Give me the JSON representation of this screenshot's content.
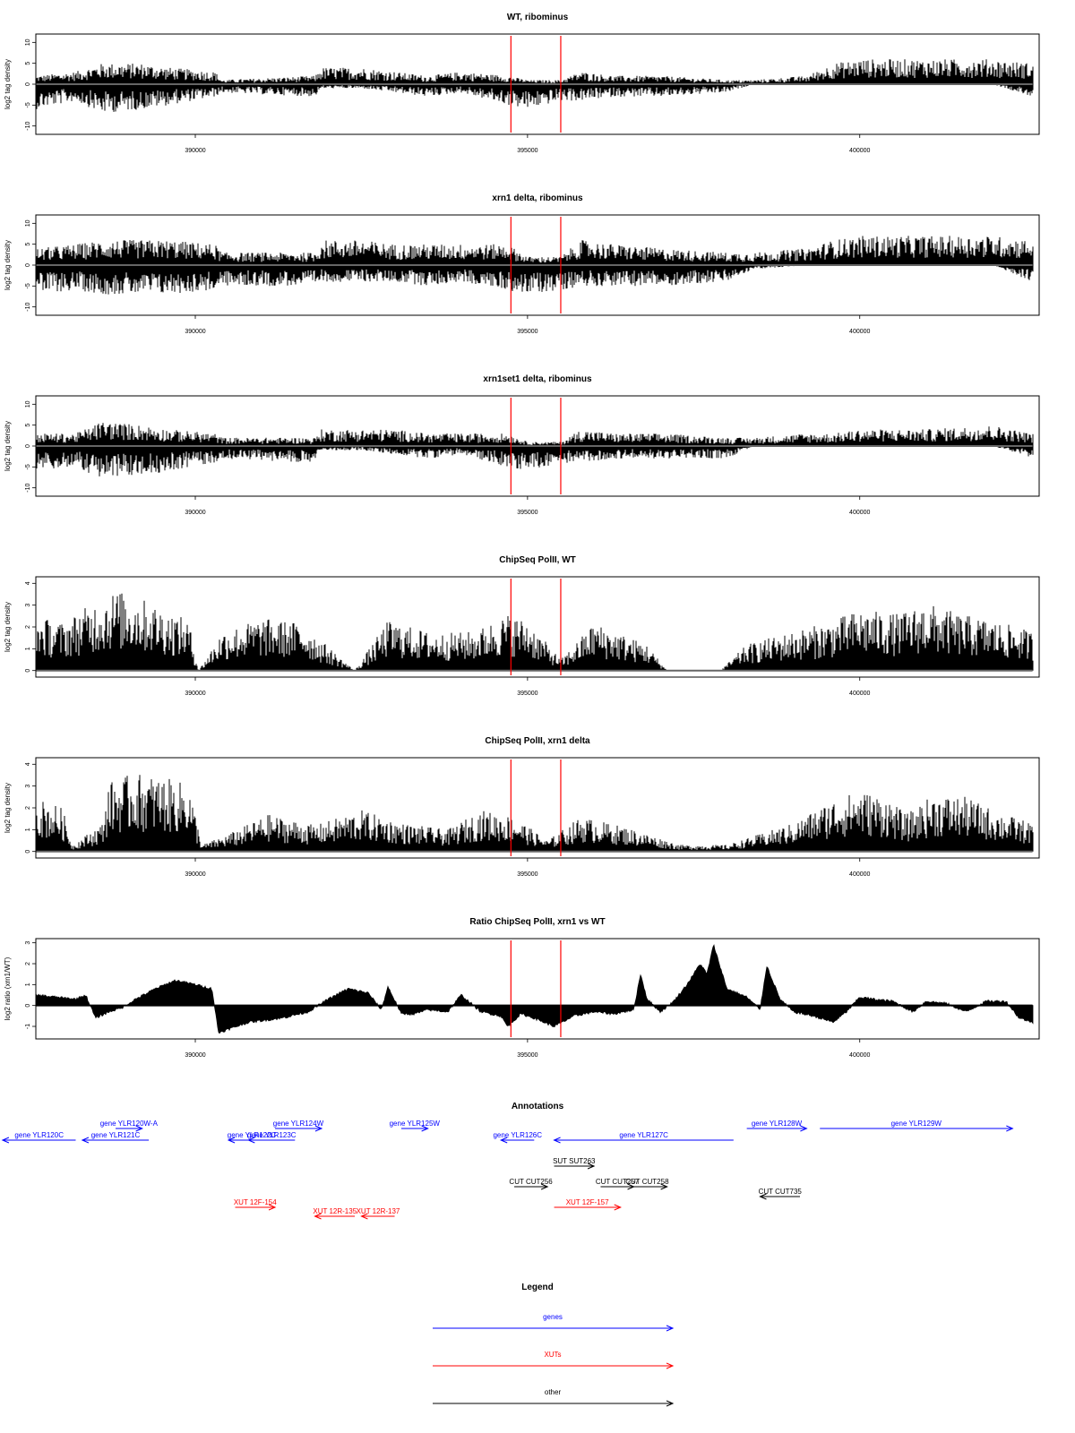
{
  "colors": {
    "bars": "#000000",
    "marker": "#ff0000",
    "gene": "#0000ff",
    "xut": "#ff0000",
    "other": "#000000",
    "frame": "#000000"
  },
  "chart_data": [
    {
      "type": "bar",
      "title": "WT, ribominus",
      "ylabel": "log2 tag density",
      "xlim": [
        387600,
        402700
      ],
      "ylim": [
        -12,
        12
      ],
      "yticks": [
        10,
        5,
        0,
        -5,
        -10
      ],
      "xticks": [
        390000,
        395000,
        400000
      ],
      "xtick_labels": [
        "390000",
        "395000",
        "400000"
      ],
      "markers": [
        394750,
        395500
      ],
      "envelope": {
        "x": [
          387600,
          388200,
          388600,
          389200,
          389600,
          390300,
          390400,
          391800,
          391900,
          392500,
          393000,
          393500,
          394000,
          394700,
          395000,
          395500,
          395800,
          396300,
          397000,
          398000,
          398400,
          399200,
          399600,
          400000,
          401000,
          402000,
          402600
        ],
        "pos": [
          2,
          3,
          5,
          5,
          4,
          3,
          1,
          2,
          4,
          4,
          3,
          2,
          3,
          2,
          1,
          1,
          3,
          2,
          2,
          1,
          1,
          2,
          5,
          6,
          6,
          6,
          5
        ],
        "neg": [
          -6,
          -4,
          -7,
          -6,
          -5,
          -3,
          -2,
          -3,
          -1,
          -1,
          -2,
          -3,
          -2,
          -5,
          -6,
          -4,
          -4,
          -3,
          -3,
          -2,
          0,
          0,
          0,
          0,
          0,
          0,
          -3
        ]
      }
    },
    {
      "type": "bar",
      "title": "xrn1 delta, ribominus",
      "ylabel": "log2 tag density",
      "xlim": [
        387600,
        402700
      ],
      "ylim": [
        -12,
        12
      ],
      "yticks": [
        10,
        5,
        0,
        -5,
        -10
      ],
      "xticks": [
        390000,
        395000,
        400000
      ],
      "xtick_labels": [
        "390000",
        "395000",
        "400000"
      ],
      "markers": [
        394750,
        395500
      ],
      "envelope": {
        "x": [
          387600,
          388200,
          388600,
          389200,
          389600,
          390300,
          390400,
          391800,
          391900,
          392500,
          393000,
          393500,
          394000,
          394700,
          395000,
          395500,
          395800,
          396300,
          397000,
          398000,
          398400,
          399200,
          399600,
          400000,
          401000,
          402000,
          402600
        ],
        "pos": [
          4,
          5,
          6,
          6,
          6,
          5,
          3,
          3,
          6,
          6,
          5,
          5,
          5,
          5,
          2,
          2,
          6,
          5,
          4,
          3,
          3,
          4,
          6,
          7,
          7,
          7,
          6
        ],
        "neg": [
          -7,
          -6,
          -7,
          -7,
          -7,
          -6,
          -5,
          -5,
          -4,
          -4,
          -4,
          -5,
          -4,
          -6,
          -7,
          -6,
          -5,
          -5,
          -5,
          -4,
          -1,
          0,
          0,
          0,
          0,
          0,
          -4
        ]
      }
    },
    {
      "type": "bar",
      "title": "xrn1set1 delta, ribominus",
      "ylabel": "log2 tag density",
      "xlim": [
        387600,
        402700
      ],
      "ylim": [
        -12,
        12
      ],
      "yticks": [
        10,
        5,
        0,
        -5,
        -10
      ],
      "xticks": [
        390000,
        395000,
        400000
      ],
      "xtick_labels": [
        "390000",
        "395000",
        "400000"
      ],
      "markers": [
        394750,
        395500
      ],
      "envelope": {
        "x": [
          387600,
          388200,
          388600,
          389200,
          389600,
          390300,
          390400,
          391800,
          391900,
          392500,
          393000,
          393500,
          394000,
          394700,
          395000,
          395500,
          395800,
          396300,
          397000,
          398000,
          398400,
          399200,
          399600,
          400000,
          401000,
          402000,
          402600
        ],
        "pos": [
          3,
          3,
          6,
          5,
          4,
          3,
          2,
          2,
          4,
          4,
          4,
          3,
          3,
          3,
          1,
          1,
          4,
          3,
          3,
          2,
          2,
          3,
          3,
          4,
          4,
          5,
          3
        ],
        "neg": [
          -6,
          -5,
          -8,
          -7,
          -6,
          -4,
          -3,
          -4,
          -1,
          -1,
          -2,
          -3,
          -2,
          -5,
          -6,
          -4,
          -4,
          -3,
          -3,
          -3,
          0,
          0,
          0,
          0,
          0,
          0,
          -3
        ]
      }
    },
    {
      "type": "bar",
      "title": "ChipSeq PolII, WT",
      "ylabel": "log2 tag density",
      "xlim": [
        387600,
        402700
      ],
      "ylim": [
        -0.3,
        4.3
      ],
      "yticks": [
        0,
        1,
        2,
        3,
        4
      ],
      "xticks": [
        390000,
        395000,
        400000
      ],
      "xtick_labels": [
        "390000",
        "395000",
        "400000"
      ],
      "markers": [
        394750,
        395500
      ],
      "envelope": {
        "x": [
          387600,
          388000,
          388400,
          388800,
          389200,
          389600,
          389900,
          390050,
          390400,
          391000,
          391600,
          392400,
          392900,
          393600,
          394200,
          394700,
          395000,
          395500,
          396000,
          396800,
          397100,
          397900,
          398300,
          399000,
          399500,
          400000,
          400600,
          401000,
          401500,
          402000,
          402600
        ],
        "pos": [
          2.5,
          2.2,
          3.0,
          3.7,
          3.3,
          2.7,
          2.3,
          0,
          1.8,
          2.4,
          2.2,
          0,
          2.3,
          1.7,
          1.8,
          2.6,
          2.3,
          0.5,
          2.2,
          1.2,
          0,
          0,
          1.2,
          1.8,
          2.2,
          2.8,
          2.6,
          3.1,
          2.6,
          2.3,
          1.8
        ],
        "neg": []
      }
    },
    {
      "type": "bar",
      "title": "ChipSeq PolII, xrn1 delta",
      "ylabel": "log2 tag density",
      "xlim": [
        387600,
        402700
      ],
      "ylim": [
        -0.3,
        4.3
      ],
      "yticks": [
        0,
        1,
        2,
        3,
        4
      ],
      "xticks": [
        390000,
        395000,
        400000
      ],
      "xtick_labels": [
        "390000",
        "395000",
        "400000"
      ],
      "markers": [
        394750,
        395500
      ],
      "envelope": {
        "x": [
          387600,
          388000,
          388150,
          388600,
          388700,
          389100,
          389500,
          389900,
          390100,
          390500,
          391100,
          391800,
          392500,
          393100,
          393800,
          394300,
          394800,
          395300,
          395800,
          396500,
          397300,
          398000,
          398500,
          399000,
          399600,
          400000,
          400400,
          400700,
          401100,
          401600,
          402100,
          402600
        ],
        "pos": [
          2.5,
          2.0,
          0.3,
          1.3,
          3.2,
          3.6,
          3.4,
          3.1,
          0.3,
          0.8,
          1.7,
          1.2,
          1.9,
          1.3,
          1.0,
          1.9,
          1.6,
          0.5,
          1.6,
          1.1,
          0.3,
          0.3,
          0.8,
          1.3,
          2.4,
          2.8,
          2.5,
          1.7,
          2.6,
          2.5,
          1.8,
          1.3
        ],
        "neg": []
      }
    },
    {
      "type": "area",
      "title": "Ratio ChipSeq PolII, xrn1 vs WT",
      "ylabel": "log2 ratio (xrn1/WT)",
      "xlim": [
        387600,
        402700
      ],
      "ylim": [
        -1.6,
        3.2
      ],
      "yticks": [
        3,
        2,
        1,
        0,
        -1
      ],
      "xticks": [
        390000,
        395000,
        400000
      ],
      "xtick_labels": [
        "390000",
        "395000",
        "400000"
      ],
      "markers": [
        394750,
        395500
      ],
      "x": [
        387600,
        387900,
        388200,
        388350,
        388500,
        388700,
        388900,
        389100,
        389400,
        389700,
        390000,
        390250,
        390350,
        390800,
        391300,
        391700,
        392000,
        392300,
        392600,
        392800,
        392900,
        393100,
        393300,
        393500,
        393800,
        394000,
        394300,
        394600,
        394700,
        394900,
        395100,
        395400,
        395700,
        396000,
        396300,
        396600,
        396700,
        396800,
        397000,
        397200,
        397400,
        397600,
        397700,
        397800,
        398000,
        398300,
        398500,
        398600,
        398800,
        399000,
        399300,
        399600,
        399800,
        400000,
        400200,
        400500,
        400800,
        401000,
        401300,
        401600,
        401900,
        402200,
        402400,
        402600
      ],
      "y": [
        0.5,
        0.4,
        0.3,
        0.5,
        -0.6,
        -0.3,
        -0.1,
        0.3,
        0.8,
        1.2,
        1.0,
        0.8,
        -1.3,
        -0.8,
        -0.6,
        -0.3,
        0.3,
        0.8,
        0.6,
        -0.2,
        0.9,
        -0.4,
        -0.4,
        -0.2,
        -0.3,
        0.5,
        -0.3,
        -0.5,
        -1.0,
        -0.4,
        -0.6,
        -1.0,
        -0.5,
        -0.3,
        -0.4,
        -0.2,
        1.5,
        0.3,
        -0.3,
        0.2,
        1.0,
        2.0,
        1.5,
        2.9,
        0.8,
        0.4,
        -0.2,
        1.9,
        0.3,
        -0.3,
        -0.5,
        -0.8,
        -0.3,
        0.4,
        0.3,
        0.2,
        -0.3,
        0.2,
        0.1,
        -0.3,
        0.2,
        0.2,
        -0.6,
        -0.8
      ]
    }
  ],
  "annotations": {
    "title": "Annotations",
    "xlim": [
      387600,
      402700
    ],
    "items": [
      {
        "label": "gene YLR120C",
        "x1": 388200,
        "x2": 387100,
        "row": 1,
        "kind": "gene"
      },
      {
        "label": "gene YLR120W-A",
        "x1": 388800,
        "x2": 389200,
        "row": 0,
        "kind": "gene"
      },
      {
        "label": "gene YLR121C",
        "x1": 389300,
        "x2": 388300,
        "row": 1,
        "kind": "gene"
      },
      {
        "label": "gene YLR122C",
        "x1": 391200,
        "x2": 390500,
        "row": 1,
        "kind": "gene"
      },
      {
        "label": "gene YLR123C",
        "x1": 391500,
        "x2": 390800,
        "row": 1,
        "kind": "gene"
      },
      {
        "label": "gene YLR124W",
        "x1": 391200,
        "x2": 391900,
        "row": 0,
        "kind": "gene"
      },
      {
        "label": "gene YLR125W",
        "x1": 393100,
        "x2": 393500,
        "row": 0,
        "kind": "gene"
      },
      {
        "label": "gene YLR126C",
        "x1": 395100,
        "x2": 394600,
        "row": 1,
        "kind": "gene"
      },
      {
        "label": "gene YLR127C",
        "x1": 398100,
        "x2": 395400,
        "row": 1,
        "kind": "gene"
      },
      {
        "label": "gene YLR128W",
        "x1": 398300,
        "x2": 399200,
        "row": 0,
        "kind": "gene"
      },
      {
        "label": "gene YLR129W",
        "x1": 399400,
        "x2": 402300,
        "row": 0,
        "kind": "gene"
      },
      {
        "label": "SUT SUT263",
        "x1": 395400,
        "x2": 396000,
        "row": 3,
        "kind": "other"
      },
      {
        "label": "CUT CUT256",
        "x1": 394800,
        "x2": 395300,
        "row": 4,
        "kind": "other"
      },
      {
        "label": "CUT CUT257",
        "x1": 396100,
        "x2": 396600,
        "row": 4,
        "kind": "other"
      },
      {
        "label": "CUT CUT258",
        "x1": 396500,
        "x2": 397100,
        "row": 4,
        "kind": "other"
      },
      {
        "label": "CUT CUT735",
        "x1": 399100,
        "x2": 398500,
        "row": 5,
        "kind": "other"
      },
      {
        "label": "XUT 12F-154",
        "x1": 390600,
        "x2": 391200,
        "row": 6,
        "kind": "xut"
      },
      {
        "label": "XUT 12R-135",
        "x1": 392400,
        "x2": 391800,
        "row": 7,
        "kind": "xut"
      },
      {
        "label": "XUT 12R-137",
        "x1": 393000,
        "x2": 392500,
        "row": 7,
        "kind": "xut"
      },
      {
        "label": "XUT 12F-157",
        "x1": 395400,
        "x2": 396400,
        "row": 6,
        "kind": "xut"
      }
    ]
  },
  "legend": {
    "title": "Legend",
    "items": [
      {
        "label": "genes",
        "kind": "gene"
      },
      {
        "label": "XUTs",
        "kind": "xut"
      },
      {
        "label": "other",
        "kind": "other"
      }
    ]
  }
}
